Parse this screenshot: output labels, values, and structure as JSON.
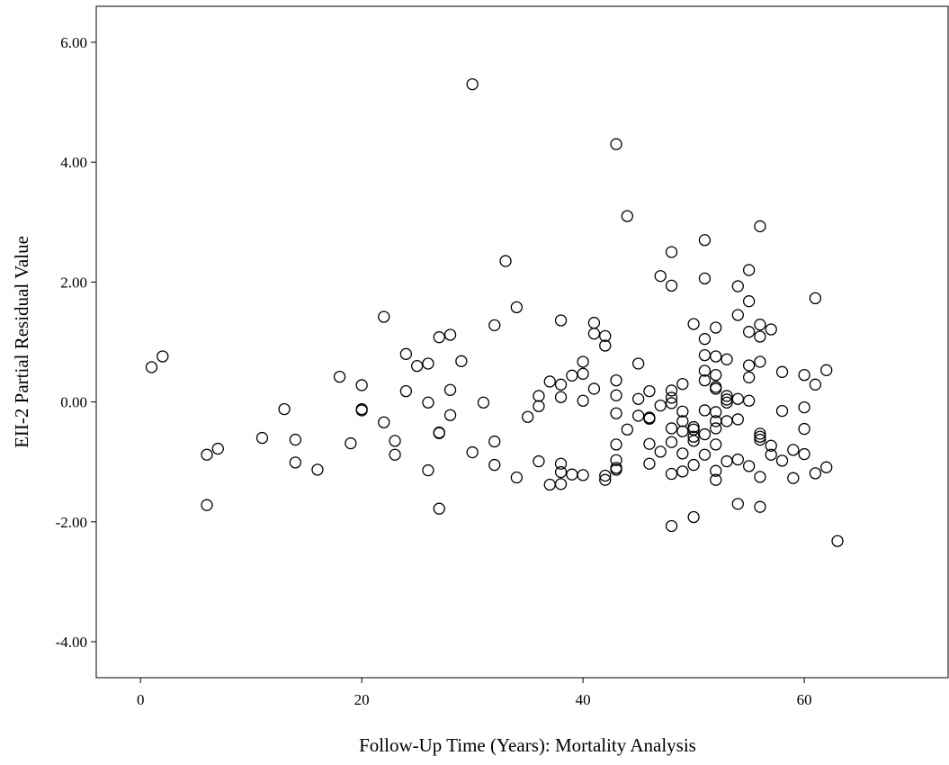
{
  "chart_data": {
    "type": "scatter",
    "title": "",
    "xlabel": "Follow-Up Time (Years): Mortality Analysis",
    "ylabel": "EII-2 Partial Residual Value",
    "xlim": [
      -4,
      73
    ],
    "ylim": [
      -4.6,
      6.6
    ],
    "x_ticks": [
      0,
      20,
      40,
      60
    ],
    "x_tick_labels": [
      "0",
      "20",
      "40",
      "60"
    ],
    "y_ticks": [
      -4,
      -2,
      0,
      2,
      4,
      6
    ],
    "y_tick_labels": [
      "-4.00",
      "-2.00",
      "0.00",
      "2.00",
      "4.00",
      "6.00"
    ],
    "grid": false,
    "legend": "none",
    "marker": "open-circle",
    "series": [
      {
        "points": [
          [
            1,
            0.58
          ],
          [
            2,
            0.76
          ],
          [
            6,
            -0.88
          ],
          [
            6,
            -1.72
          ],
          [
            7,
            -0.78
          ],
          [
            11,
            -0.6
          ],
          [
            13,
            -0.12
          ],
          [
            14,
            -0.63
          ],
          [
            14,
            -1.01
          ],
          [
            16,
            -1.13
          ],
          [
            18,
            0.42
          ],
          [
            19,
            -0.69
          ],
          [
            20,
            0.28
          ],
          [
            20,
            -0.12
          ],
          [
            20,
            -0.14
          ],
          [
            22,
            1.42
          ],
          [
            22,
            -0.34
          ],
          [
            23,
            -0.65
          ],
          [
            23,
            -0.88
          ],
          [
            24,
            0.8
          ],
          [
            24,
            0.18
          ],
          [
            25,
            0.6
          ],
          [
            26,
            0.64
          ],
          [
            26,
            -0.01
          ],
          [
            26,
            -1.14
          ],
          [
            27,
            1.08
          ],
          [
            27,
            -0.51
          ],
          [
            27,
            -0.52
          ],
          [
            27,
            -1.78
          ],
          [
            28,
            1.12
          ],
          [
            28,
            0.2
          ],
          [
            28,
            -0.22
          ],
          [
            29,
            0.68
          ],
          [
            30,
            5.3
          ],
          [
            30,
            -0.84
          ],
          [
            31,
            -0.01
          ],
          [
            32,
            1.28
          ],
          [
            32,
            -0.66
          ],
          [
            32,
            -1.05
          ],
          [
            33,
            2.35
          ],
          [
            34,
            1.58
          ],
          [
            34,
            -1.26
          ],
          [
            35,
            -0.25
          ],
          [
            36,
            0.1
          ],
          [
            36,
            -0.07
          ],
          [
            36,
            -0.99
          ],
          [
            37,
            0.34
          ],
          [
            37,
            -1.38
          ],
          [
            38,
            1.36
          ],
          [
            38,
            0.29
          ],
          [
            38,
            0.08
          ],
          [
            38,
            -1.03
          ],
          [
            38,
            -1.17
          ],
          [
            38,
            -1.37
          ],
          [
            39,
            0.44
          ],
          [
            39,
            -1.21
          ],
          [
            40,
            0.67
          ],
          [
            40,
            0.47
          ],
          [
            40,
            0.02
          ],
          [
            40,
            -1.22
          ],
          [
            41,
            1.32
          ],
          [
            41,
            1.14
          ],
          [
            41,
            0.22
          ],
          [
            42,
            1.1
          ],
          [
            42,
            0.94
          ],
          [
            42,
            -1.23
          ],
          [
            42,
            -1.3
          ],
          [
            43,
            4.3
          ],
          [
            43,
            0.36
          ],
          [
            43,
            0.11
          ],
          [
            43,
            -0.19
          ],
          [
            43,
            -0.71
          ],
          [
            43,
            -0.97
          ],
          [
            43,
            -1.1
          ],
          [
            43,
            -1.13
          ],
          [
            44,
            3.1
          ],
          [
            44,
            -0.46
          ],
          [
            45,
            0.64
          ],
          [
            45,
            0.05
          ],
          [
            45,
            -0.23
          ],
          [
            46,
            0.18
          ],
          [
            46,
            -0.26
          ],
          [
            46,
            -0.28
          ],
          [
            46,
            -0.7
          ],
          [
            46,
            -1.03
          ],
          [
            47,
            2.1
          ],
          [
            47,
            -0.06
          ],
          [
            47,
            -0.83
          ],
          [
            48,
            2.5
          ],
          [
            48,
            1.94
          ],
          [
            48,
            0.19
          ],
          [
            48,
            0.07
          ],
          [
            48,
            -0.02
          ],
          [
            48,
            -0.44
          ],
          [
            48,
            -0.67
          ],
          [
            48,
            -1.2
          ],
          [
            48,
            -2.07
          ],
          [
            49,
            0.3
          ],
          [
            49,
            -0.16
          ],
          [
            49,
            -0.32
          ],
          [
            49,
            -0.49
          ],
          [
            49,
            -0.86
          ],
          [
            49,
            -1.16
          ],
          [
            50,
            1.3
          ],
          [
            50,
            -0.42
          ],
          [
            50,
            -0.46
          ],
          [
            50,
            -0.58
          ],
          [
            50,
            -0.65
          ],
          [
            50,
            -1.05
          ],
          [
            50,
            -1.92
          ],
          [
            51,
            2.7
          ],
          [
            51,
            2.06
          ],
          [
            51,
            1.05
          ],
          [
            51,
            0.78
          ],
          [
            51,
            0.52
          ],
          [
            51,
            0.36
          ],
          [
            51,
            -0.14
          ],
          [
            51,
            -0.54
          ],
          [
            51,
            -0.88
          ],
          [
            52,
            1.24
          ],
          [
            52,
            0.76
          ],
          [
            52,
            0.45
          ],
          [
            52,
            0.25
          ],
          [
            52,
            0.22
          ],
          [
            52,
            -0.17
          ],
          [
            52,
            -0.32
          ],
          [
            52,
            -0.44
          ],
          [
            52,
            -0.71
          ],
          [
            52,
            -1.15
          ],
          [
            52,
            -1.3
          ],
          [
            53,
            0.71
          ],
          [
            53,
            0.1
          ],
          [
            53,
            0.04
          ],
          [
            53,
            -0.01
          ],
          [
            53,
            -0.32
          ],
          [
            53,
            -0.99
          ],
          [
            54,
            1.93
          ],
          [
            54,
            1.45
          ],
          [
            54,
            0.05
          ],
          [
            54,
            -0.29
          ],
          [
            54,
            -0.96
          ],
          [
            54,
            -1.7
          ],
          [
            55,
            2.2
          ],
          [
            55,
            1.68
          ],
          [
            55,
            1.17
          ],
          [
            55,
            0.61
          ],
          [
            55,
            0.41
          ],
          [
            55,
            0.02
          ],
          [
            55,
            -1.07
          ],
          [
            56,
            2.93
          ],
          [
            56,
            1.29
          ],
          [
            56,
            1.09
          ],
          [
            56,
            0.67
          ],
          [
            56,
            -0.53
          ],
          [
            56,
            -0.58
          ],
          [
            56,
            -0.63
          ],
          [
            56,
            -1.25
          ],
          [
            56,
            -1.75
          ],
          [
            57,
            1.21
          ],
          [
            57,
            -0.73
          ],
          [
            57,
            -0.88
          ],
          [
            58,
            0.5
          ],
          [
            58,
            -0.15
          ],
          [
            58,
            -0.98
          ],
          [
            59,
            -0.8
          ],
          [
            59,
            -1.27
          ],
          [
            60,
            0.45
          ],
          [
            60,
            -0.09
          ],
          [
            60,
            -0.45
          ],
          [
            60,
            -0.87
          ],
          [
            61,
            1.73
          ],
          [
            61,
            0.29
          ],
          [
            61,
            -1.19
          ],
          [
            62,
            0.53
          ],
          [
            62,
            -1.09
          ],
          [
            63,
            -2.32
          ]
        ]
      }
    ]
  },
  "colors": {
    "background": "#ffffff",
    "axis": "#000000",
    "marker_stroke": "#000000",
    "marker_fill": "none"
  }
}
